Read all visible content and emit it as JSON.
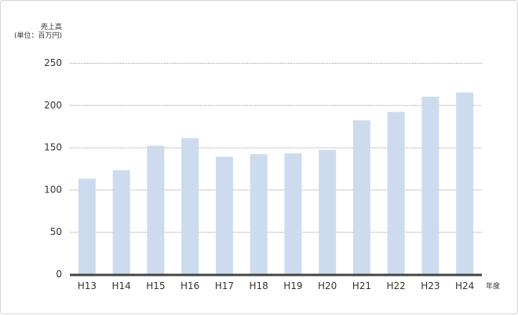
{
  "chart_data": {
    "type": "bar",
    "ylabel_line1": "売上高",
    "ylabel_line2": "(単位：百万円)",
    "xlabel": "年度",
    "categories": [
      "H13",
      "H14",
      "H15",
      "H16",
      "H17",
      "H18",
      "H19",
      "H20",
      "H21",
      "H22",
      "H23",
      "H24"
    ],
    "values": [
      113,
      123,
      152,
      161,
      139,
      142,
      143,
      147,
      182,
      192,
      210,
      215
    ],
    "ylim": [
      0,
      250
    ],
    "yticks": [
      0,
      50,
      100,
      150,
      200,
      250
    ],
    "grid": true,
    "bar_color": "#ccdcee",
    "axis_color": "#444444",
    "grid_color": "#999999"
  }
}
